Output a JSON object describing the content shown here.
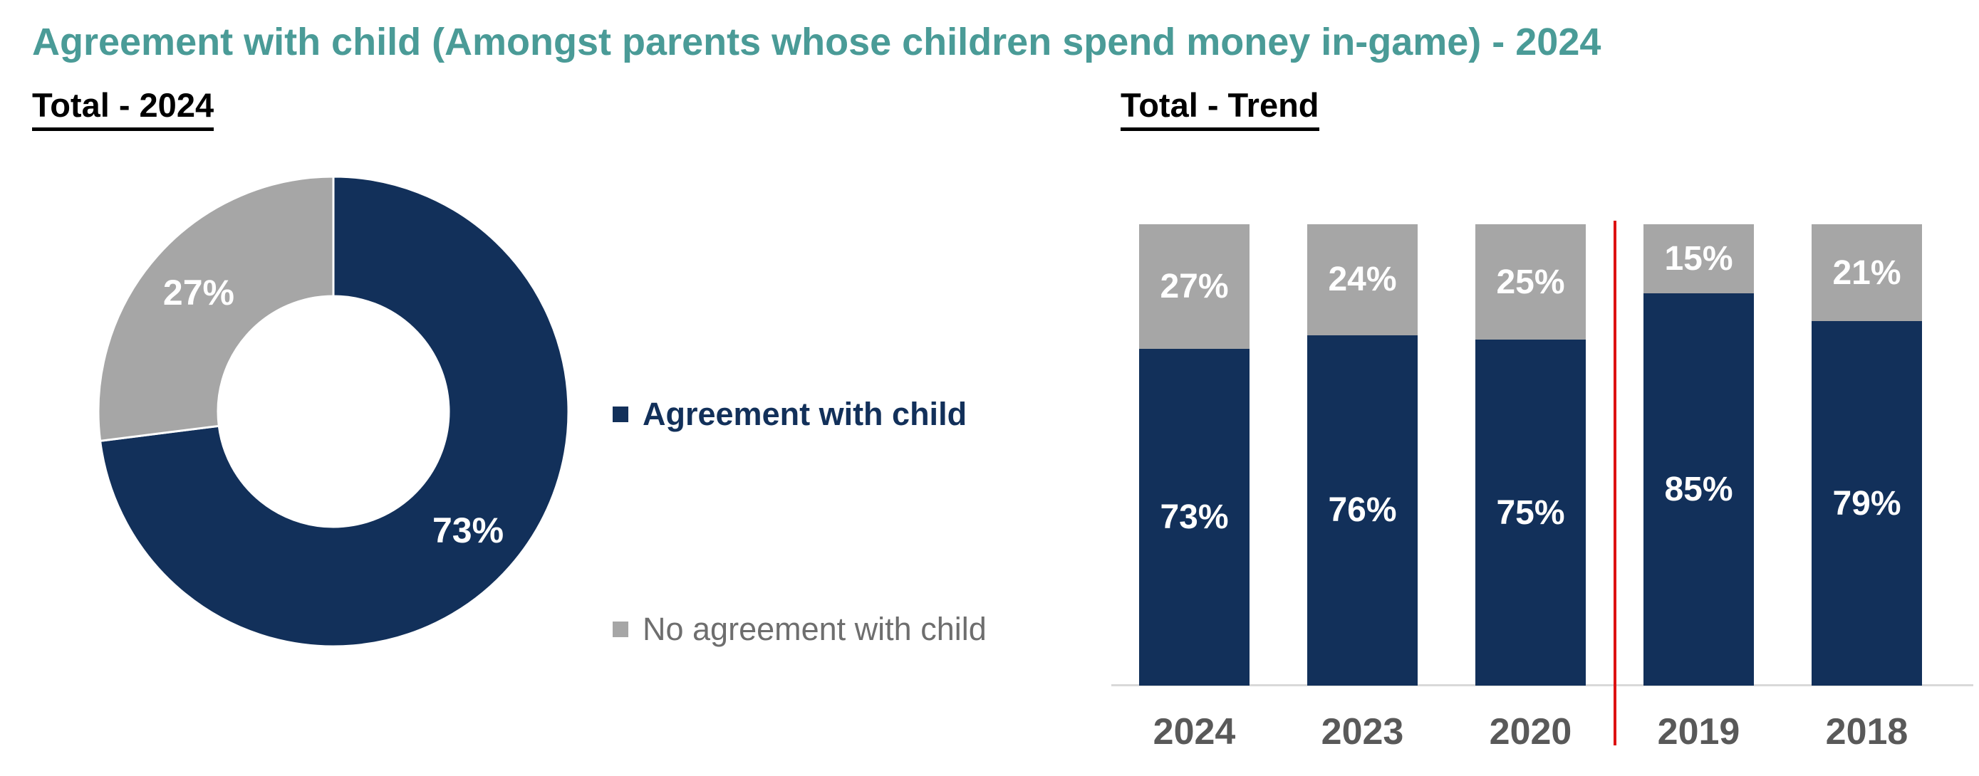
{
  "report": {
    "title": "Agreement with child (Amongst parents whose children spend money in-game) - 2024"
  },
  "sections": {
    "left": {
      "heading": "Total - 2024"
    },
    "right": {
      "heading": "Total - Trend"
    }
  },
  "legend": {
    "items": [
      {
        "label": "Agreement with child",
        "color": "#12305A",
        "text_color": "#12305A",
        "bold": true
      },
      {
        "label": "No agreement with child",
        "color": "#A6A6A6",
        "text_color": "#6E6E6E",
        "bold": false
      }
    ]
  },
  "colors": {
    "title_teal": "#4A9B97",
    "navy": "#12305A",
    "gray": "#A6A6A6",
    "value_label_text": "#FFFFFF",
    "axis_line": "#D9D9D9",
    "year_text": "#595959",
    "divider_red": "#DD1111",
    "slice_separator": "#FFFFFF"
  },
  "chart_data": [
    {
      "type": "pie",
      "subtype": "donut",
      "title": "Total - 2024",
      "labels": [
        "Agreement with child",
        "No agreement with child"
      ],
      "values": [
        73,
        27
      ],
      "unit": "%",
      "colors": [
        "#12305A",
        "#A6A6A6"
      ],
      "start_angle_deg": 0,
      "direction": "clockwise",
      "hole_ratio": 0.49,
      "value_labels": "inside",
      "legend_position": "right"
    },
    {
      "type": "bar",
      "subtype": "stacked-100",
      "title": "Total - Trend",
      "categories": [
        "2024",
        "2023",
        "2020",
        "2019",
        "2018"
      ],
      "series": [
        {
          "name": "Agreement with child",
          "color": "#12305A",
          "values": [
            73,
            76,
            75,
            85,
            79
          ]
        },
        {
          "name": "No agreement with child",
          "color": "#A6A6A6",
          "values": [
            27,
            24,
            25,
            15,
            21
          ]
        }
      ],
      "unit": "%",
      "ylim": [
        0,
        100
      ],
      "grid": false,
      "value_labels": "inside",
      "divider_line": {
        "between_categories": [
          "2020",
          "2019"
        ],
        "color": "#DD1111"
      }
    }
  ]
}
